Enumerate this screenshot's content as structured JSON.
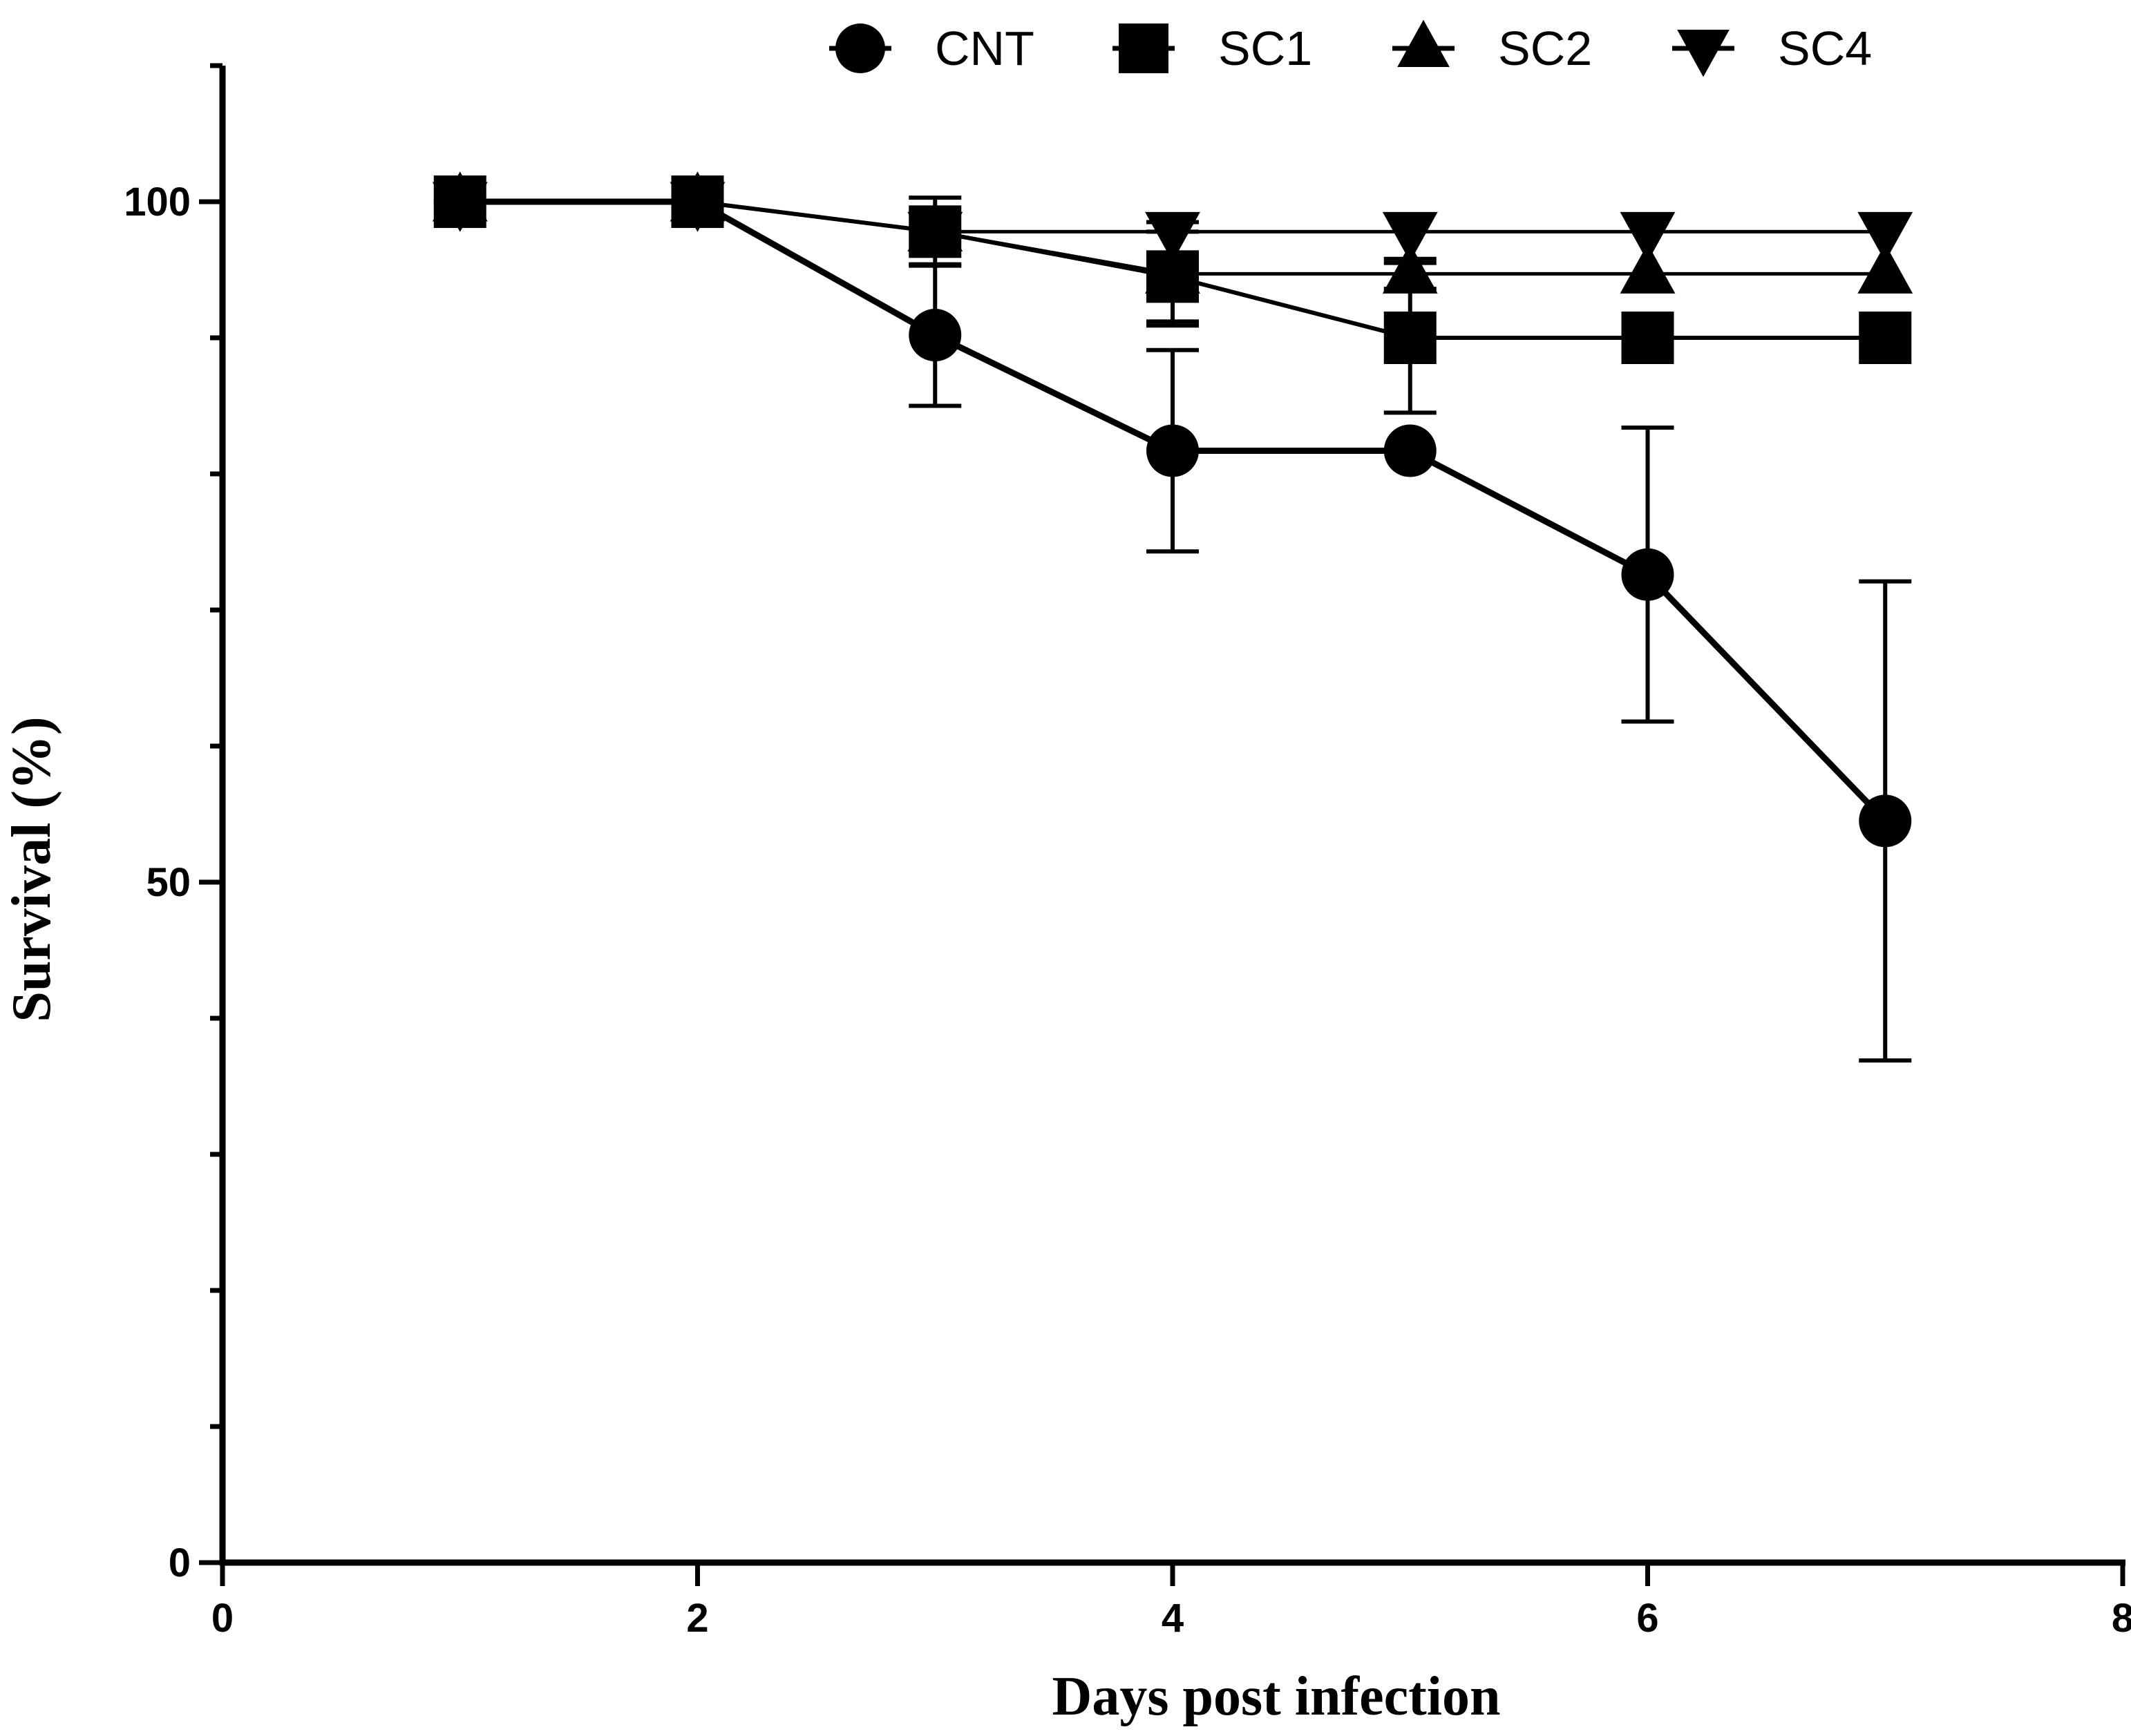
{
  "chart_data": {
    "type": "line",
    "title": "",
    "xlabel": "Days post infection",
    "ylabel": "Survival (%)",
    "xlim": [
      0,
      8
    ],
    "ylim": [
      0,
      110
    ],
    "xticks": [
      "0",
      "2",
      "4",
      "6",
      "8"
    ],
    "yticks": [
      "0",
      "50",
      "100"
    ],
    "grid": false,
    "legend_position": "top",
    "series": [
      {
        "name": "CNT",
        "marker": "circle",
        "x": [
          1,
          2,
          3,
          4,
          5,
          6,
          7
        ],
        "y": [
          100,
          100,
          90.2,
          81.7,
          81.7,
          72.6,
          54.5
        ],
        "err": [
          null,
          null,
          5.2,
          7.4,
          null,
          10.8,
          17.6
        ]
      },
      {
        "name": "SC1",
        "marker": "square",
        "x": [
          1,
          2,
          3,
          4,
          5,
          6,
          7
        ],
        "y": [
          100,
          100,
          97.8,
          94.5,
          90,
          90,
          90
        ],
        "err": [
          null,
          null,
          2.5,
          3.3,
          5.5,
          null,
          null
        ]
      },
      {
        "name": "SC2",
        "marker": "triangle-up",
        "x": [
          1,
          2,
          3,
          4,
          5,
          6,
          7
        ],
        "y": [
          100,
          100,
          97.8,
          94.7,
          94.7,
          94.7,
          94.7
        ],
        "err": [
          null,
          null,
          null,
          3.8,
          1.1,
          null,
          null
        ]
      },
      {
        "name": "SC4",
        "marker": "triangle-down",
        "x": [
          1,
          2,
          3,
          4,
          5,
          6,
          7
        ],
        "y": [
          100,
          100,
          97.8,
          97.8,
          97.8,
          97.8,
          97.8
        ],
        "err": [
          null,
          null,
          null,
          null,
          null,
          null,
          null
        ]
      }
    ]
  }
}
